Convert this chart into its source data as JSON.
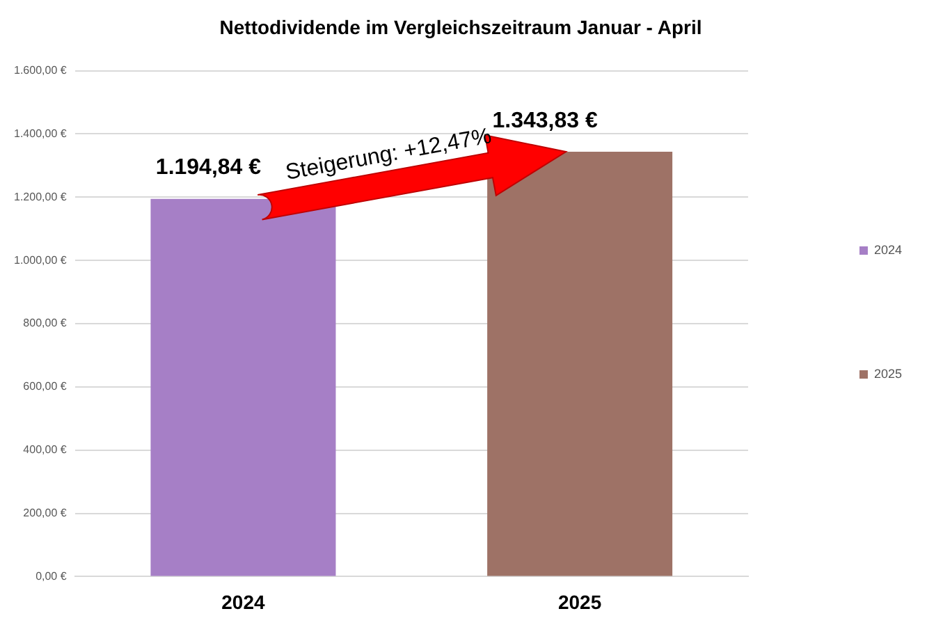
{
  "chart_data": {
    "type": "bar",
    "title": "Nettodividende im Vergleichszeitraum Januar - April",
    "categories": [
      "2024",
      "2025"
    ],
    "series": [
      {
        "name": "2024",
        "color": "#a67fc6",
        "values": [
          1194.84,
          null
        ],
        "value_labels": [
          "1.194,84 €",
          null
        ]
      },
      {
        "name": "2025",
        "color": "#9e7266",
        "values": [
          null,
          1343.83
        ],
        "value_labels": [
          null,
          "1.343,83 €"
        ]
      }
    ],
    "ylim": [
      0,
      1600
    ],
    "yticks": [
      {
        "value": 0,
        "label": "0,00 €"
      },
      {
        "value": 200,
        "label": "200,00 €"
      },
      {
        "value": 400,
        "label": "400,00 €"
      },
      {
        "value": 600,
        "label": "600,00 €"
      },
      {
        "value": 800,
        "label": "800,00 €"
      },
      {
        "value": 1000,
        "label": "1.000,00 €"
      },
      {
        "value": 1200,
        "label": "1.200,00 €"
      },
      {
        "value": 1400,
        "label": "1.400,00 €"
      },
      {
        "value": 1600,
        "label": "1.600,00 €"
      }
    ],
    "grid": "y",
    "legend": "right",
    "annotations": [
      "Steigerung: +12,47%"
    ]
  }
}
